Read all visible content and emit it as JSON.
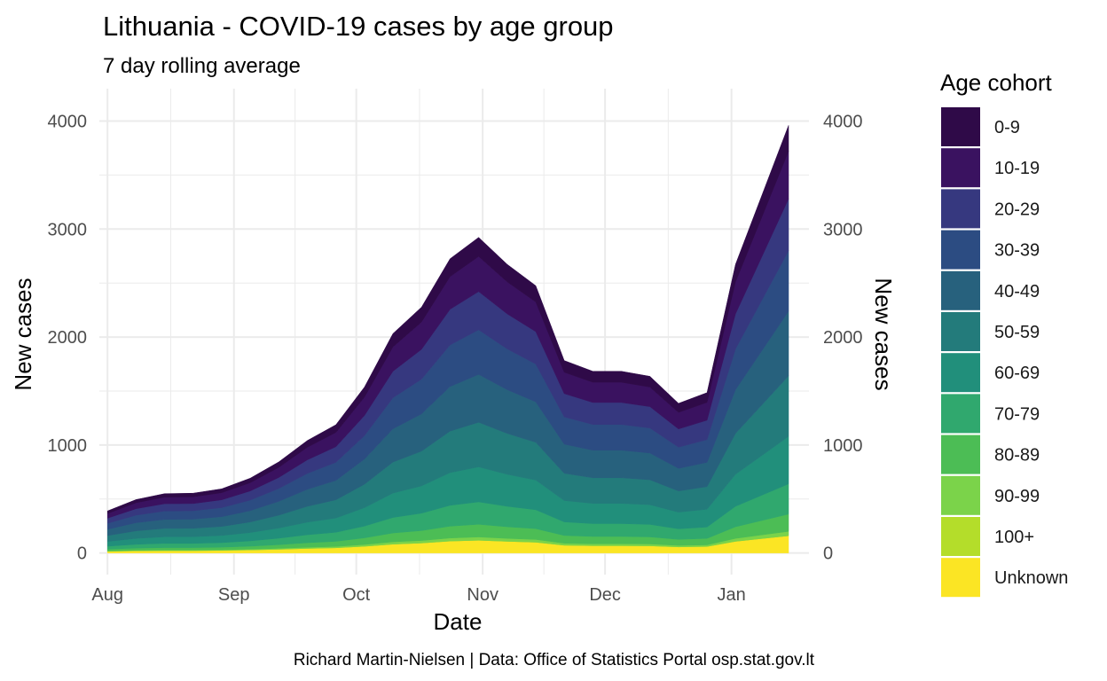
{
  "chart_data": {
    "type": "area",
    "title": "Lithuania - COVID-19 cases by age group",
    "subtitle": "7 day rolling average",
    "xlabel": "Date",
    "ylabel": "New cases",
    "ylabel_right": "New cases",
    "caption": "Richard Martin-Nielsen | Data: Office of Statistics Portal osp.stat.gov.lt",
    "legend_title": "Age cohort",
    "legend_position": "right",
    "grid": true,
    "stacked": true,
    "xlim": [
      "2020-07-30",
      "2021-01-20"
    ],
    "ylim": [
      -200,
      4300
    ],
    "x_ticks": [
      {
        "date": "2020-08-01",
        "label": "Aug"
      },
      {
        "date": "2020-09-01",
        "label": "Sep"
      },
      {
        "date": "2020-10-01",
        "label": "Oct"
      },
      {
        "date": "2020-11-01",
        "label": "Nov"
      },
      {
        "date": "2020-12-01",
        "label": "Dec"
      },
      {
        "date": "2021-01-01",
        "label": "Jan"
      }
    ],
    "y_ticks": [
      0,
      1000,
      2000,
      3000,
      4000
    ],
    "y_tick_labels": [
      "0",
      "1000",
      "2000",
      "3000",
      "4000"
    ],
    "dates": [
      "2020-08-01",
      "2020-08-08",
      "2020-08-15",
      "2020-08-22",
      "2020-08-29",
      "2020-09-05",
      "2020-09-12",
      "2020-09-19",
      "2020-09-26",
      "2020-10-03",
      "2020-10-10",
      "2020-10-17",
      "2020-10-24",
      "2020-10-31",
      "2020-11-07",
      "2020-11-14",
      "2020-11-21",
      "2020-11-28",
      "2020-12-05",
      "2020-12-12",
      "2020-12-19",
      "2020-12-26",
      "2021-01-02",
      "2021-01-09",
      "2021-01-15"
    ],
    "totals": [
      390,
      500,
      555,
      560,
      600,
      700,
      850,
      1050,
      1200,
      1550,
      2050,
      2300,
      2750,
      2950,
      2700,
      2500,
      1800,
      1700,
      1700,
      1650,
      1400,
      1500,
      2700,
      3400,
      4000
    ],
    "series": [
      {
        "name": "0-9",
        "color": "#2f0a48",
        "values": [
          25,
          30,
          33,
          34,
          36,
          42,
          51,
          63,
          72,
          93,
          123,
          138,
          165,
          177,
          162,
          150,
          108,
          102,
          102,
          99,
          84,
          90,
          162,
          204,
          240
        ]
      },
      {
        "name": "10-19",
        "color": "#3a1260",
        "values": [
          43,
          55,
          61,
          62,
          66,
          77,
          94,
          116,
          132,
          171,
          226,
          253,
          303,
          325,
          297,
          275,
          198,
          187,
          187,
          182,
          154,
          165,
          297,
          374,
          440
        ]
      },
      {
        "name": "20-29",
        "color": "#36387f",
        "values": [
          47,
          60,
          67,
          67,
          72,
          84,
          102,
          126,
          144,
          186,
          246,
          276,
          330,
          354,
          324,
          300,
          216,
          204,
          204,
          198,
          168,
          180,
          324,
          408,
          480
        ]
      },
      {
        "name": "30-39",
        "color": "#2c4c82",
        "values": [
          55,
          70,
          78,
          78,
          84,
          98,
          119,
          147,
          168,
          217,
          287,
          322,
          385,
          413,
          378,
          350,
          252,
          238,
          238,
          231,
          196,
          210,
          378,
          476,
          560
        ]
      },
      {
        "name": "40-49",
        "color": "#27617d",
        "values": [
          59,
          75,
          83,
          84,
          90,
          105,
          128,
          158,
          180,
          233,
          308,
          345,
          413,
          443,
          405,
          375,
          270,
          255,
          255,
          248,
          210,
          225,
          405,
          510,
          600
        ]
      },
      {
        "name": "50-59",
        "color": "#237b7b",
        "values": [
          55,
          70,
          78,
          78,
          84,
          98,
          119,
          147,
          168,
          217,
          287,
          322,
          385,
          413,
          378,
          350,
          252,
          238,
          238,
          231,
          196,
          210,
          378,
          476,
          560
        ]
      },
      {
        "name": "60-69",
        "color": "#218f7b",
        "values": [
          43,
          55,
          61,
          62,
          66,
          77,
          94,
          116,
          132,
          171,
          226,
          253,
          303,
          325,
          297,
          275,
          198,
          187,
          187,
          182,
          154,
          165,
          297,
          374,
          440
        ]
      },
      {
        "name": "70-79",
        "color": "#30a86e",
        "values": [
          27,
          35,
          39,
          39,
          42,
          49,
          60,
          74,
          84,
          109,
          144,
          161,
          193,
          207,
          189,
          175,
          126,
          119,
          119,
          116,
          98,
          105,
          189,
          238,
          280
        ]
      },
      {
        "name": "80-89",
        "color": "#4cbd55",
        "values": [
          16,
          20,
          22,
          22,
          24,
          28,
          34,
          42,
          48,
          62,
          82,
          92,
          110,
          118,
          108,
          100,
          72,
          68,
          68,
          66,
          56,
          60,
          108,
          136,
          160
        ]
      },
      {
        "name": "90-99",
        "color": "#7bd34a",
        "values": [
          4,
          5,
          6,
          6,
          6,
          7,
          9,
          11,
          12,
          16,
          21,
          23,
          28,
          30,
          27,
          25,
          18,
          17,
          17,
          17,
          14,
          15,
          27,
          34,
          40
        ]
      },
      {
        "name": "100+",
        "color": "#b4dd2a",
        "values": [
          0,
          0,
          0,
          0,
          0,
          0,
          0,
          0,
          0,
          0,
          0,
          0,
          0,
          0,
          0,
          0,
          0,
          0,
          0,
          0,
          0,
          0,
          0,
          0,
          0
        ]
      },
      {
        "name": "Unknown",
        "color": "#fbe524",
        "values": [
          16,
          20,
          22,
          22,
          24,
          28,
          34,
          42,
          48,
          62,
          82,
          92,
          110,
          118,
          108,
          100,
          72,
          68,
          68,
          66,
          56,
          60,
          108,
          136,
          160
        ]
      }
    ]
  }
}
